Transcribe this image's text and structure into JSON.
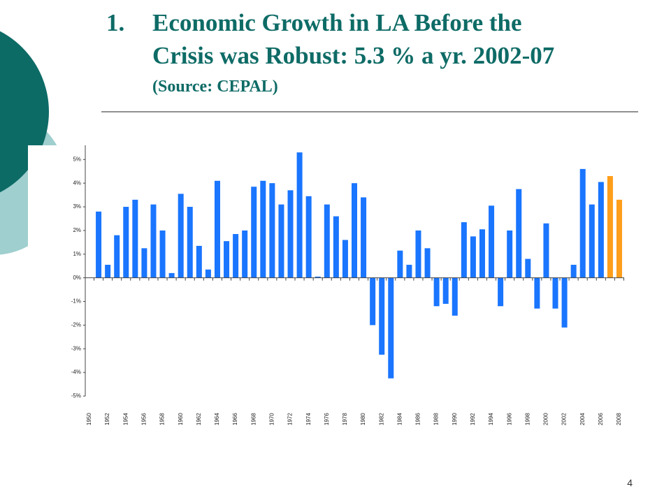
{
  "title_number": "1.",
  "title_lines": [
    "Economic Growth in LA Before the",
    "Crisis was Robust: 5.3 % a yr. 2002-07"
  ],
  "source": "(Source: CEPAL)",
  "page_number": "4",
  "chart_data": {
    "type": "bar",
    "categories": [
      "1950",
      null,
      "1952",
      null,
      "1954",
      null,
      "1956",
      null,
      "1958",
      null,
      "1960",
      null,
      "1962",
      null,
      "1964",
      null,
      "1966",
      null,
      "1968",
      null,
      "1970",
      null,
      "1972",
      null,
      "1974",
      null,
      "1976",
      null,
      "1978",
      null,
      "1980",
      null,
      "1982",
      null,
      "1984",
      null,
      "1986",
      null,
      "1988",
      null,
      "1990",
      null,
      "1992",
      null,
      "1994",
      null,
      "1996",
      null,
      "1998",
      null,
      "2000",
      null,
      "2002",
      null,
      "2004",
      null,
      "2006",
      null,
      "2008"
    ],
    "values": [
      null,
      2.8,
      0.55,
      1.8,
      3.0,
      3.3,
      1.25,
      3.1,
      2.0,
      0.2,
      3.55,
      3.0,
      1.35,
      0.35,
      4.1,
      1.55,
      1.85,
      2.0,
      3.85,
      4.1,
      4.0,
      3.1,
      3.7,
      5.3,
      3.45,
      0.05,
      3.1,
      2.6,
      1.6,
      4.0,
      3.4,
      -2.0,
      -3.25,
      -4.25,
      1.15,
      0.55,
      2.0,
      1.25,
      -1.2,
      -1.1,
      -1.6,
      2.35,
      1.75,
      2.05,
      3.05,
      -1.2,
      2.0,
      3.75,
      0.8,
      -1.3,
      2.3,
      -1.3,
      -2.1,
      0.55,
      4.6,
      3.1,
      4.05,
      4.3,
      3.3
    ],
    "colors": [
      null,
      "#1a75ff",
      "#1a75ff",
      "#1a75ff",
      "#1a75ff",
      "#1a75ff",
      "#1a75ff",
      "#1a75ff",
      "#1a75ff",
      "#1a75ff",
      "#1a75ff",
      "#1a75ff",
      "#1a75ff",
      "#1a75ff",
      "#1a75ff",
      "#1a75ff",
      "#1a75ff",
      "#1a75ff",
      "#1a75ff",
      "#1a75ff",
      "#1a75ff",
      "#1a75ff",
      "#1a75ff",
      "#1a75ff",
      "#1a75ff",
      "#1a75ff",
      "#1a75ff",
      "#1a75ff",
      "#1a75ff",
      "#1a75ff",
      "#1a75ff",
      "#1a75ff",
      "#1a75ff",
      "#1a75ff",
      "#1a75ff",
      "#1a75ff",
      "#1a75ff",
      "#1a75ff",
      "#1a75ff",
      "#1a75ff",
      "#1a75ff",
      "#1a75ff",
      "#1a75ff",
      "#1a75ff",
      "#1a75ff",
      "#1a75ff",
      "#1a75ff",
      "#1a75ff",
      "#1a75ff",
      "#1a75ff",
      "#1a75ff",
      "#1a75ff",
      "#1a75ff",
      "#1a75ff",
      "#1a75ff",
      "#1a75ff",
      "#1a75ff",
      "#ff9e1b",
      "#ff9e1b"
    ],
    "ylim": [
      -5,
      5.6
    ],
    "yticks": [
      {
        "value": -5,
        "label": "-5%"
      },
      {
        "value": -4,
        "label": "-4%"
      },
      {
        "value": -3,
        "label": "-3%"
      },
      {
        "value": -2,
        "label": "-2%"
      },
      {
        "value": -1,
        "label": "-1%"
      },
      {
        "value": 0,
        "label": "0%"
      },
      {
        "value": 1,
        "label": "1%"
      },
      {
        "value": 2,
        "label": "2%"
      },
      {
        "value": 3,
        "label": "3%"
      },
      {
        "value": 4,
        "label": "4%"
      },
      {
        "value": 5,
        "label": "5%"
      }
    ]
  }
}
